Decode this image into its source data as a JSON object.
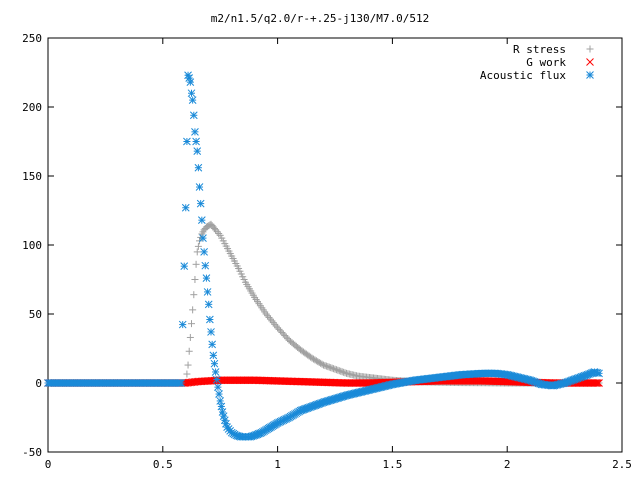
{
  "chart_data": {
    "type": "scatter",
    "title": "m2/n1.5/q2.0/r-+.25-j130/M7.0/512",
    "xlabel": "",
    "ylabel": "",
    "xlim": [
      0,
      2.5
    ],
    "ylim": [
      -50,
      250
    ],
    "x_ticks": [
      "0",
      "0.5",
      "1",
      "1.5",
      "2",
      "2.5"
    ],
    "y_ticks": [
      "250",
      "200",
      "150",
      "100",
      "50",
      "0",
      "-50"
    ],
    "x_tick_values": [
      0,
      0.5,
      1,
      1.5,
      2,
      2.5
    ],
    "y_tick_values": [
      250,
      200,
      150,
      100,
      50,
      0,
      -50
    ],
    "grid": false,
    "legend_position": "top-right",
    "series": [
      {
        "name": "R stress",
        "marker": "plus",
        "color": "#a0a0a0",
        "points": [
          [
            0.0,
            0
          ],
          [
            0.3,
            0
          ],
          [
            0.6,
            0
          ],
          [
            0.61,
            13
          ],
          [
            0.615,
            23
          ],
          [
            0.62,
            33
          ],
          [
            0.625,
            43
          ],
          [
            0.63,
            53
          ],
          [
            0.635,
            64
          ],
          [
            0.64,
            75
          ],
          [
            0.645,
            86
          ],
          [
            0.65,
            95
          ],
          [
            0.66,
            103
          ],
          [
            0.67,
            108
          ],
          [
            0.68,
            111
          ],
          [
            0.69,
            113
          ],
          [
            0.7,
            114
          ],
          [
            0.71,
            115
          ],
          [
            0.72,
            113
          ],
          [
            0.73,
            111
          ],
          [
            0.75,
            107
          ],
          [
            0.77,
            101
          ],
          [
            0.8,
            92
          ],
          [
            0.83,
            83
          ],
          [
            0.86,
            73
          ],
          [
            0.9,
            62
          ],
          [
            0.95,
            50
          ],
          [
            1.0,
            40
          ],
          [
            1.05,
            31
          ],
          [
            1.1,
            24
          ],
          [
            1.15,
            18
          ],
          [
            1.2,
            13
          ],
          [
            1.25,
            10
          ],
          [
            1.3,
            7
          ],
          [
            1.35,
            5
          ],
          [
            1.4,
            4
          ],
          [
            1.5,
            2
          ],
          [
            1.6,
            1
          ],
          [
            1.7,
            0.6
          ],
          [
            1.8,
            0.3
          ],
          [
            1.9,
            0.2
          ],
          [
            2.0,
            0
          ],
          [
            2.1,
            0
          ],
          [
            2.2,
            0
          ],
          [
            2.3,
            0
          ],
          [
            2.4,
            0
          ]
        ]
      },
      {
        "name": "G work",
        "marker": "cross",
        "color": "#ff0000",
        "points": [
          [
            0.0,
            0
          ],
          [
            0.3,
            0
          ],
          [
            0.6,
            0
          ],
          [
            0.65,
            1
          ],
          [
            0.7,
            1.5
          ],
          [
            0.75,
            2
          ],
          [
            0.8,
            2
          ],
          [
            0.9,
            2
          ],
          [
            1.0,
            1.5
          ],
          [
            1.1,
            1
          ],
          [
            1.2,
            0.5
          ],
          [
            1.3,
            0
          ],
          [
            1.4,
            0
          ],
          [
            1.5,
            0.5
          ],
          [
            1.6,
            1
          ],
          [
            1.7,
            1.5
          ],
          [
            1.8,
            1.5
          ],
          [
            1.9,
            1.5
          ],
          [
            2.0,
            1
          ],
          [
            2.1,
            0.5
          ],
          [
            2.2,
            0
          ],
          [
            2.3,
            0
          ],
          [
            2.4,
            0
          ]
        ]
      },
      {
        "name": "Acoustic flux",
        "marker": "star",
        "color": "#1a8ad8",
        "points": [
          [
            0.0,
            0
          ],
          [
            0.3,
            0
          ],
          [
            0.58,
            0
          ],
          [
            0.6,
            127
          ],
          [
            0.61,
            223
          ],
          [
            0.615,
            221
          ],
          [
            0.62,
            218
          ],
          [
            0.625,
            210
          ],
          [
            0.63,
            205
          ],
          [
            0.635,
            194
          ],
          [
            0.64,
            182
          ],
          [
            0.65,
            168
          ],
          [
            0.655,
            156
          ],
          [
            0.66,
            142
          ],
          [
            0.665,
            130
          ],
          [
            0.67,
            118
          ],
          [
            0.675,
            105
          ],
          [
            0.68,
            95
          ],
          [
            0.685,
            85
          ],
          [
            0.69,
            76
          ],
          [
            0.695,
            66
          ],
          [
            0.7,
            57
          ],
          [
            0.705,
            46
          ],
          [
            0.71,
            37
          ],
          [
            0.715,
            28
          ],
          [
            0.72,
            20
          ],
          [
            0.73,
            8
          ],
          [
            0.74,
            -3
          ],
          [
            0.75,
            -13
          ],
          [
            0.76,
            -21
          ],
          [
            0.77,
            -27
          ],
          [
            0.78,
            -32
          ],
          [
            0.8,
            -36
          ],
          [
            0.82,
            -38
          ],
          [
            0.84,
            -39
          ],
          [
            0.86,
            -39
          ],
          [
            0.88,
            -39
          ],
          [
            0.9,
            -38
          ],
          [
            0.93,
            -36
          ],
          [
            0.96,
            -33
          ],
          [
            1.0,
            -29
          ],
          [
            1.05,
            -25
          ],
          [
            1.1,
            -20
          ],
          [
            1.2,
            -14
          ],
          [
            1.3,
            -9
          ],
          [
            1.4,
            -5
          ],
          [
            1.5,
            -1
          ],
          [
            1.6,
            2
          ],
          [
            1.7,
            4
          ],
          [
            1.8,
            6
          ],
          [
            1.9,
            7
          ],
          [
            1.95,
            7
          ],
          [
            2.0,
            6
          ],
          [
            2.05,
            4
          ],
          [
            2.1,
            2
          ],
          [
            2.15,
            -1
          ],
          [
            2.2,
            -2
          ],
          [
            2.25,
            0
          ],
          [
            2.3,
            3
          ],
          [
            2.35,
            6
          ],
          [
            2.38,
            8
          ],
          [
            2.4,
            7
          ]
        ]
      }
    ]
  }
}
